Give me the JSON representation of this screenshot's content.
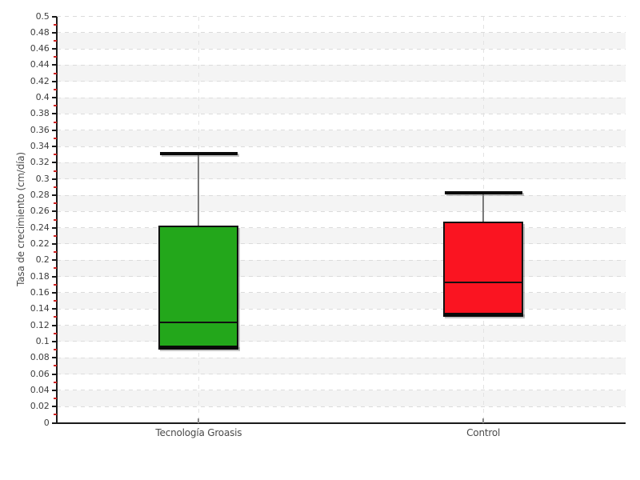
{
  "chart_data": {
    "type": "boxplot",
    "title": "",
    "xlabel": "",
    "ylabel": "Tasa de crecimiento (cm/día)",
    "ylim": [
      0,
      0.5
    ],
    "ytick_step": 0.02,
    "y_minor_tick_step": 0.01,
    "grid": true,
    "grid_style": "dashed horizontal gridlines at every 0.02 with alternating zebra bands; dashed vertical gridline at each category",
    "legend": "none",
    "categories": [
      "Tecnología Groasis",
      "Control"
    ],
    "series": [
      {
        "name": "Tecnología Groasis",
        "color": "#23a71b",
        "min": 0.093,
        "q1": 0.093,
        "median": 0.124,
        "q3": 0.243,
        "max": 0.331
      },
      {
        "name": "Control",
        "color": "#fa1421",
        "min": 0.133,
        "q1": 0.133,
        "median": 0.173,
        "q3": 0.248,
        "max": 0.283
      }
    ],
    "colors": {
      "axis": "#1a1a1a",
      "tick_label": "#3f3f3f",
      "minor_tick": "#cc2222",
      "gridline": "#dcdcdc",
      "band": "#f4f4f4",
      "category_gridline": "#e3e3e3",
      "category_tick": "#8a8a8a",
      "whisker_line": "#7a7a7a",
      "whisker_cap": "#0a0a0a",
      "box_border": "#111111",
      "median": "#101010",
      "shadow": "rgba(125,125,125,0.45)"
    }
  }
}
